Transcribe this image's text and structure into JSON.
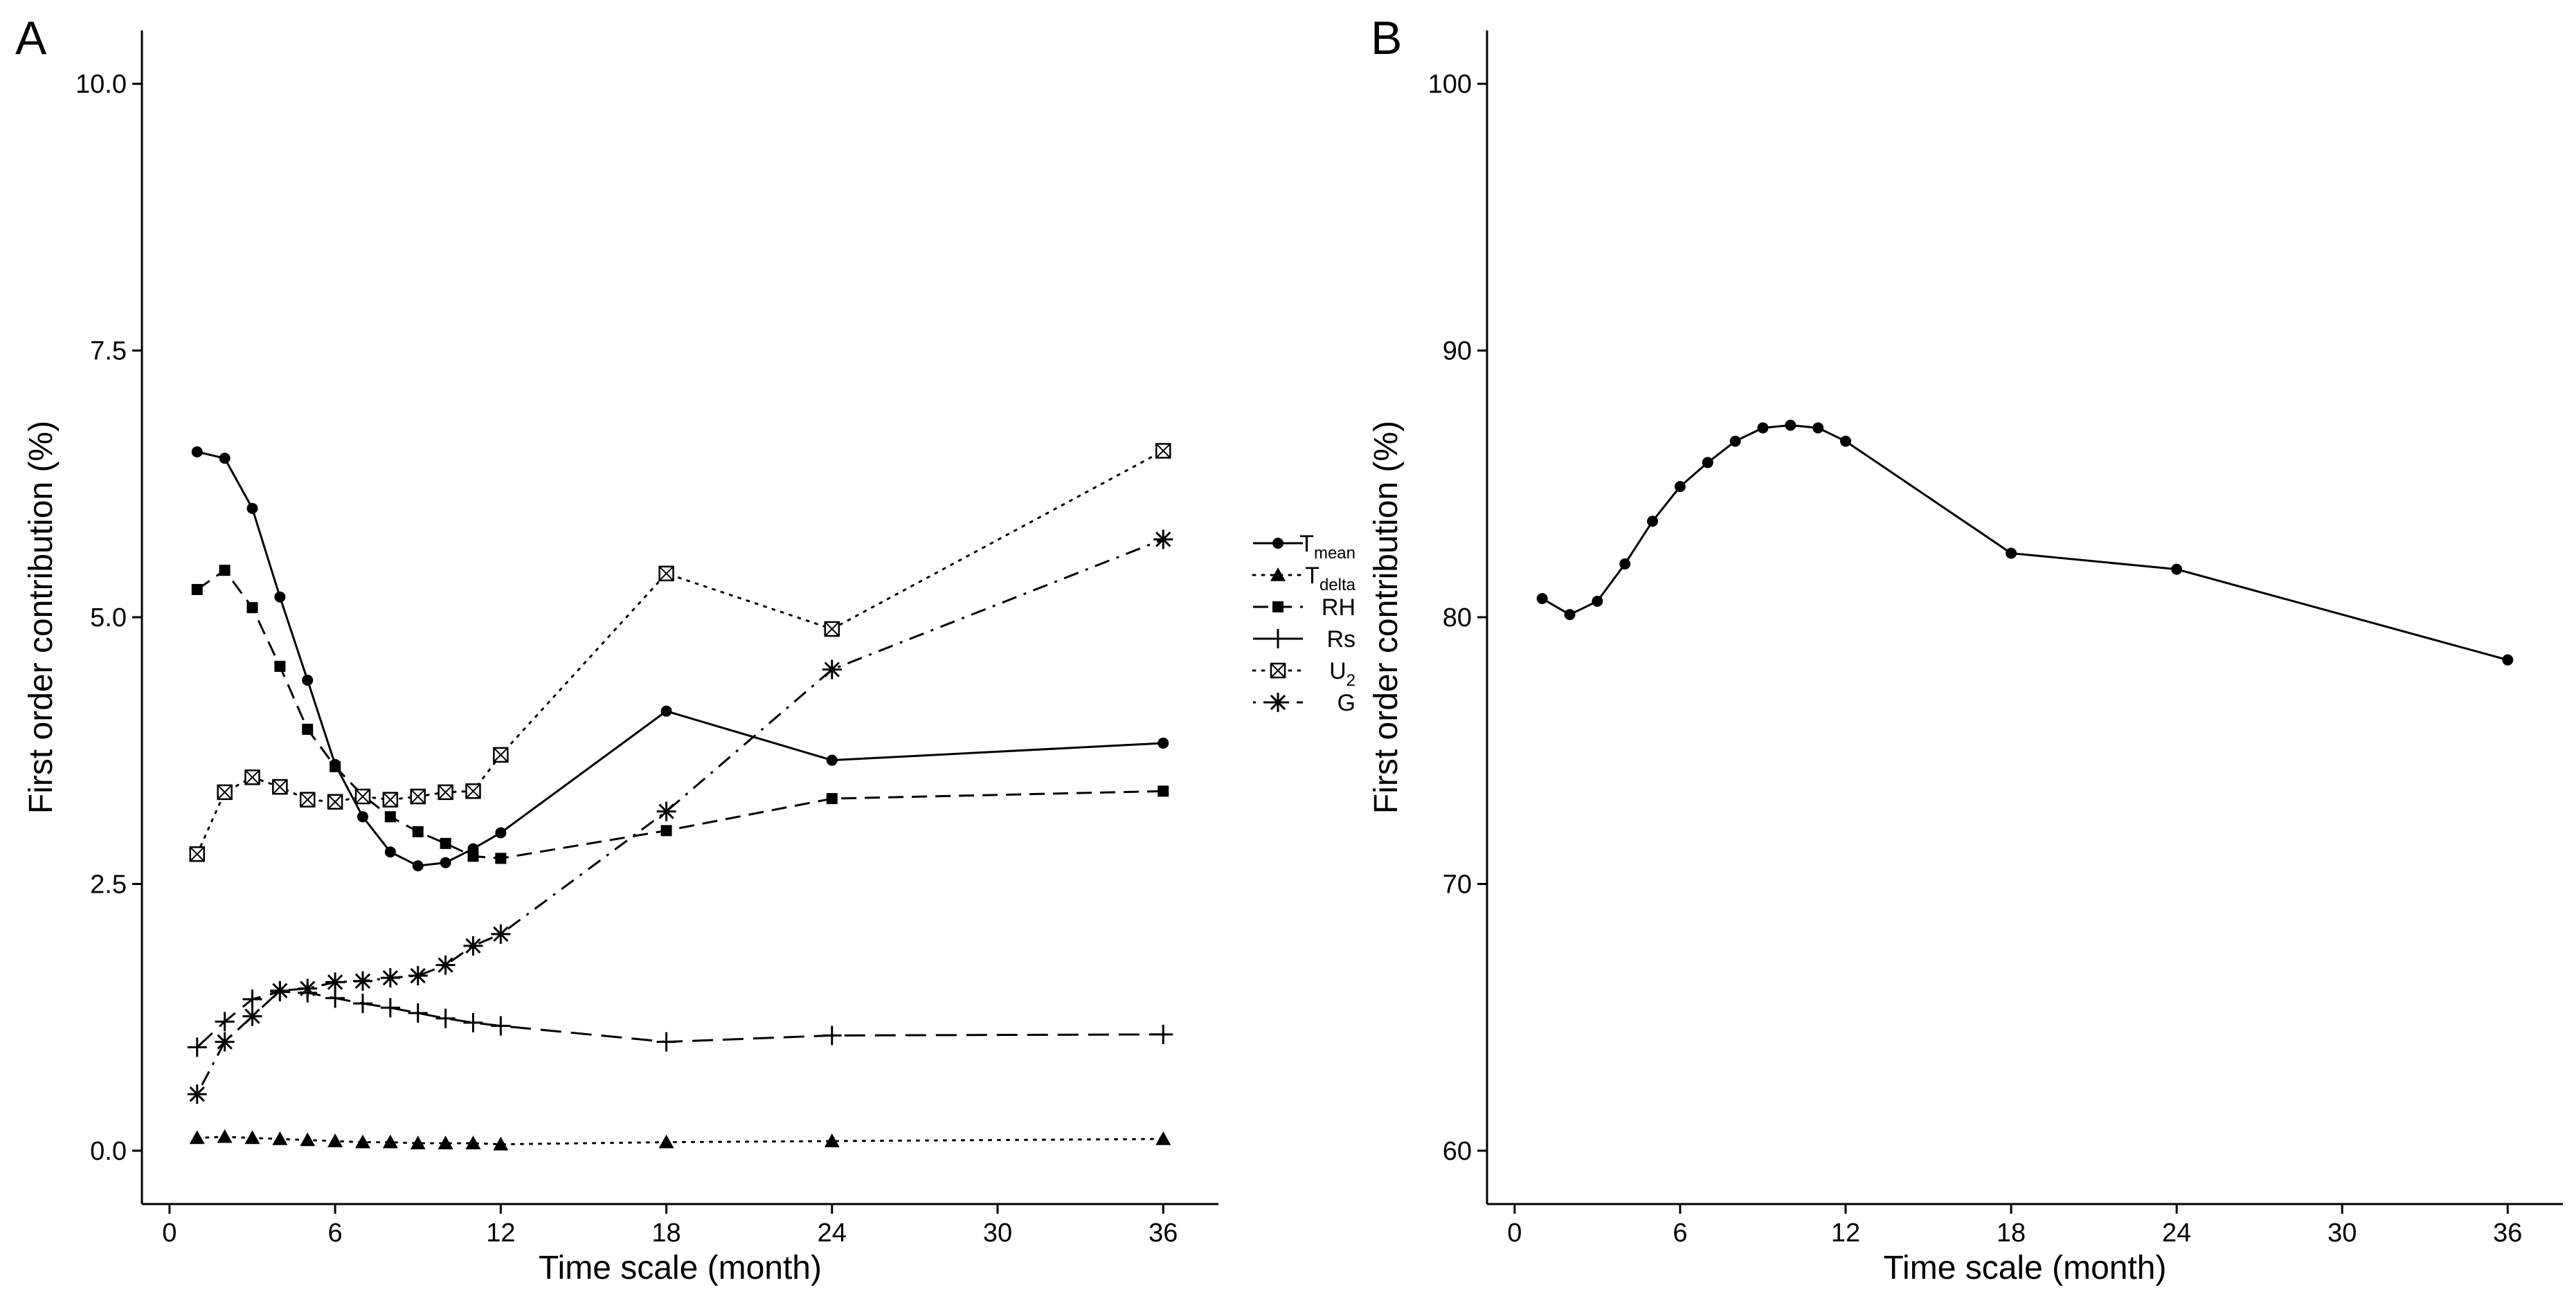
{
  "chart_data": [
    {
      "panel_label": "A",
      "type": "line",
      "xlabel": "Time scale (month)",
      "ylabel": "First order contribution (%)",
      "xlim": [
        -1,
        38
      ],
      "ylim": [
        -0.5,
        10.5
      ],
      "x_ticks": [
        0,
        6,
        12,
        18,
        24,
        30,
        36
      ],
      "y_ticks": [
        0.0,
        2.5,
        5.0,
        7.5,
        10.0
      ],
      "y_tick_labels": [
        "0.0",
        "2.5",
        "5.0",
        "7.5",
        "10.0"
      ],
      "grid": false,
      "legend": "right",
      "x": [
        1,
        2,
        3,
        4,
        5,
        6,
        7,
        8,
        9,
        10,
        11,
        12,
        18,
        24,
        36
      ],
      "series": [
        {
          "name": "T",
          "name_sub": "mean",
          "marker": "circle",
          "dash": "solid",
          "values": [
            6.55,
            6.49,
            6.02,
            5.19,
            4.41,
            3.62,
            3.13,
            2.8,
            2.67,
            2.7,
            2.83,
            2.98,
            4.12,
            3.66,
            3.82
          ]
        },
        {
          "name": "T",
          "name_sub": "delta",
          "marker": "triangle",
          "dash": "dotted",
          "values": [
            0.12,
            0.13,
            0.12,
            0.11,
            0.1,
            0.09,
            0.08,
            0.08,
            0.07,
            0.07,
            0.07,
            0.06,
            0.08,
            0.09,
            0.11
          ]
        },
        {
          "name": "RH",
          "name_sub": "",
          "marker": "square",
          "dash": "dashed",
          "values": [
            5.26,
            5.44,
            5.09,
            4.54,
            3.95,
            3.6,
            3.33,
            3.13,
            2.99,
            2.88,
            2.76,
            2.74,
            3.0,
            3.3,
            3.37
          ]
        },
        {
          "name": "Rs",
          "name_sub": "",
          "marker": "plus",
          "dash": "longdash",
          "values": [
            0.97,
            1.21,
            1.42,
            1.49,
            1.48,
            1.43,
            1.38,
            1.34,
            1.29,
            1.24,
            1.2,
            1.17,
            1.02,
            1.08,
            1.09
          ]
        },
        {
          "name": "U",
          "name_sub": "2",
          "marker": "boxcross",
          "dash": "dotted",
          "values": [
            2.78,
            3.36,
            3.5,
            3.41,
            3.29,
            3.27,
            3.32,
            3.29,
            3.32,
            3.36,
            3.37,
            3.71,
            5.41,
            4.89,
            6.56
          ]
        },
        {
          "name": "G",
          "name_sub": "",
          "marker": "asterisk",
          "dash": "dotdash",
          "values": [
            0.53,
            1.02,
            1.26,
            1.5,
            1.52,
            1.58,
            1.59,
            1.62,
            1.64,
            1.74,
            1.92,
            2.03,
            3.18,
            4.51,
            5.73
          ]
        }
      ]
    },
    {
      "panel_label": "B",
      "type": "line",
      "xlabel": "Time scale (month)",
      "ylabel": "First order contribution (%)",
      "xlim": [
        -1,
        38
      ],
      "ylim": [
        58,
        102
      ],
      "x_ticks": [
        0,
        6,
        12,
        18,
        24,
        30,
        36
      ],
      "y_ticks": [
        60,
        70,
        80,
        90,
        100
      ],
      "y_tick_labels": [
        "60",
        "70",
        "80",
        "90",
        "100"
      ],
      "grid": false,
      "x": [
        1,
        2,
        3,
        4,
        5,
        6,
        7,
        8,
        9,
        10,
        11,
        12,
        18,
        24,
        36
      ],
      "series": [
        {
          "name": "",
          "marker": "circle",
          "dash": "solid",
          "values": [
            80.7,
            80.1,
            80.6,
            82.0,
            83.6,
            84.9,
            85.8,
            86.6,
            87.1,
            87.2,
            87.1,
            86.6,
            82.4,
            81.8,
            78.4
          ]
        }
      ]
    }
  ]
}
